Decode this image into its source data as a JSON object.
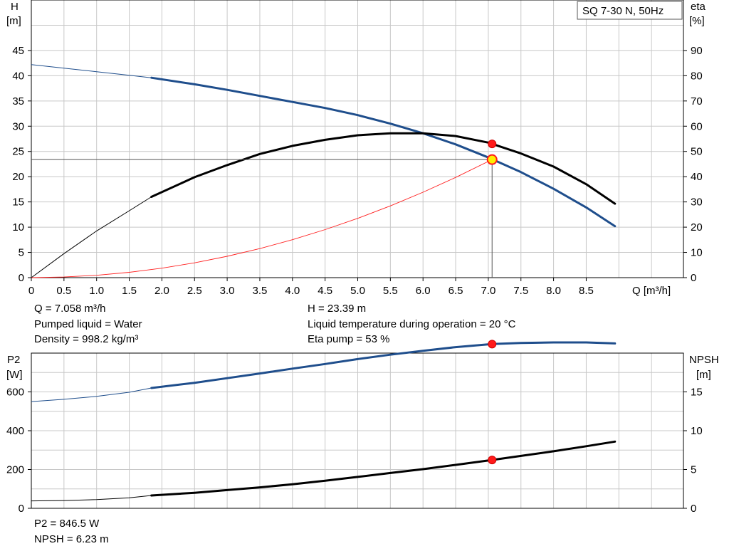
{
  "pump_title": "SQ 7-30 N, 50Hz",
  "chart_data": [
    {
      "type": "line",
      "name_label": "",
      "x_axis": {
        "label": "Q [m³/h]",
        "range": [
          0,
          9.5
        ],
        "ticks": [
          "0",
          "0.5",
          "1.0",
          "1.5",
          "2.0",
          "2.5",
          "3.0",
          "3.5",
          "4.0",
          "4.5",
          "5.0",
          "5.5",
          "6.0",
          "6.5",
          "7.0",
          "7.5",
          "8.0",
          "8.5"
        ]
      },
      "y_left": {
        "label_line1": "H",
        "label_line2": "[m]",
        "range": [
          0,
          55
        ],
        "ticks": [
          "0",
          "5",
          "10",
          "15",
          "20",
          "25",
          "30",
          "35",
          "40",
          "45"
        ]
      },
      "y_right": {
        "label_line1": "eta",
        "label_line2": "[%]",
        "range": [
          0,
          110
        ],
        "ticks": [
          "0",
          "10",
          "20",
          "30",
          "40",
          "50",
          "60",
          "70",
          "80",
          "90"
        ]
      },
      "grid": true,
      "series": [
        {
          "key": "H",
          "color": "#1f4e8c",
          "axis": "left",
          "x": [
            0,
            0.5,
            1.0,
            1.5,
            1.84,
            2.5,
            3.0,
            3.5,
            4.0,
            4.5,
            5.0,
            5.5,
            6.0,
            6.5,
            7.0,
            7.5,
            8.0,
            8.5,
            8.94
          ],
          "y": [
            42.2,
            41.5,
            40.8,
            40.1,
            39.6,
            38.3,
            37.2,
            36.0,
            34.8,
            33.6,
            32.2,
            30.5,
            28.6,
            26.4,
            23.8,
            20.9,
            17.6,
            13.9,
            10.2
          ],
          "thin_until": 1.84
        },
        {
          "key": "eta",
          "color": "#000000",
          "axis": "right",
          "x": [
            0,
            0.5,
            1.0,
            1.5,
            1.84,
            2.5,
            3.0,
            3.5,
            4.0,
            4.5,
            5.0,
            5.5,
            6.0,
            6.5,
            7.0,
            7.5,
            8.0,
            8.5,
            8.94
          ],
          "y": [
            0,
            9.5,
            18.5,
            26.5,
            32,
            39.8,
            44.6,
            49.0,
            52.2,
            54.6,
            56.4,
            57.2,
            57.2,
            56.1,
            53.5,
            49.2,
            44.0,
            37.0,
            29.3
          ],
          "thin_until": 1.84
        },
        {
          "key": "system",
          "color": "#ff2020",
          "axis": "left",
          "x": [
            0,
            0.5,
            1.0,
            1.5,
            2.0,
            2.5,
            3.0,
            3.5,
            4.0,
            4.5,
            5.0,
            5.5,
            6.0,
            6.5,
            7.058
          ],
          "y": [
            0,
            0.12,
            0.47,
            1.06,
            1.88,
            2.94,
            4.23,
            5.76,
            7.52,
            9.52,
            11.75,
            14.22,
            16.92,
            19.86,
            23.39
          ],
          "thin_until": 99
        }
      ],
      "operating_point": {
        "x": 7.058,
        "y": 23.39,
        "eta": 53
      },
      "eta_point": {
        "x": 7.058,
        "y": 53
      }
    },
    {
      "type": "line",
      "x_axis": {
        "range": [
          0,
          9.5
        ]
      },
      "y_left": {
        "label_line1": "P2",
        "label_line2": "[W]",
        "range": [
          0,
          800
        ],
        "ticks": [
          "0",
          "200",
          "400",
          "600"
        ]
      },
      "y_right": {
        "label_line1": "NPSH",
        "label_line2": "[m]",
        "range": [
          0,
          20
        ],
        "ticks": [
          "0",
          "5",
          "10",
          "15"
        ]
      },
      "grid": true,
      "series": [
        {
          "key": "P2",
          "color": "#1f4e8c",
          "axis": "left",
          "x": [
            0,
            0.5,
            1.0,
            1.5,
            1.84,
            2.5,
            3.0,
            3.5,
            4.0,
            4.5,
            5.0,
            5.5,
            6.0,
            6.5,
            7.058,
            7.5,
            8.0,
            8.5,
            8.94
          ],
          "y": [
            550,
            562,
            577,
            598,
            620,
            647,
            671,
            695,
            720,
            744,
            769,
            792,
            812,
            831,
            846.5,
            852,
            855,
            855,
            850
          ],
          "thin_until": 1.84
        },
        {
          "key": "NPSH",
          "color": "#000000",
          "axis": "right",
          "x": [
            0,
            0.5,
            1.0,
            1.5,
            1.84,
            2.5,
            3.0,
            3.5,
            4.0,
            4.5,
            5.0,
            5.5,
            6.0,
            6.5,
            7.058,
            7.5,
            8.0,
            8.5,
            8.94
          ],
          "y": [
            0.95,
            1.0,
            1.12,
            1.35,
            1.65,
            2.0,
            2.35,
            2.7,
            3.1,
            3.55,
            4.05,
            4.55,
            5.05,
            5.6,
            6.23,
            6.75,
            7.35,
            8.0,
            8.6
          ],
          "thin_until": 1.84
        }
      ],
      "points": [
        {
          "x": 7.058,
          "y": 846.5,
          "axis": "left"
        },
        {
          "x": 7.058,
          "y": 6.23,
          "axis": "right"
        }
      ]
    }
  ],
  "info_top": {
    "q": "Q = 7.058 m³/h",
    "liquid": "Pumped liquid = Water",
    "density": "Density = 998.2 kg/m³",
    "h": "H = 23.39 m",
    "temp": "Liquid temperature during operation = 20 °C",
    "eta": "Eta pump = 53 %"
  },
  "info_bottom": {
    "p2": "P2 = 846.5 W",
    "npsh": "NPSH = 6.23 m"
  }
}
